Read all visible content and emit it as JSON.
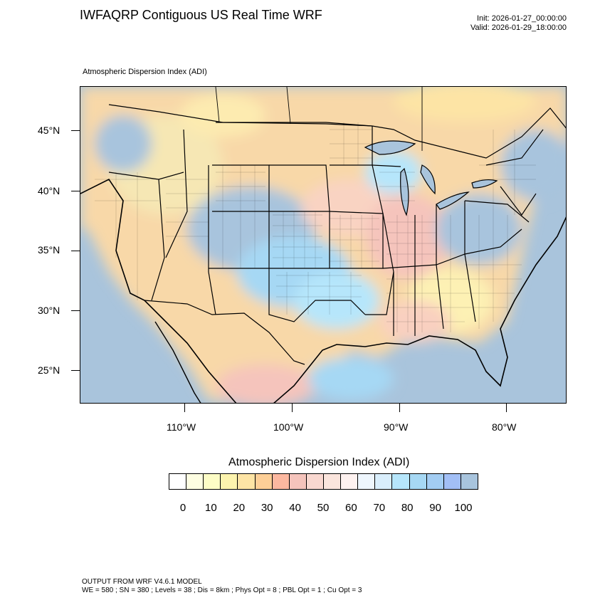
{
  "header": {
    "title": "IWFAQRP Contiguous US Real Time WRF",
    "init_line": "Init: 2026-01-27_00:00:00",
    "valid_line": "Valid: 2026-01-29_18:00:00"
  },
  "map": {
    "subtitle": "Atmospheric Dispersion Index   (ADI)",
    "lat_labels": [
      "45°N",
      "40°N",
      "35°N",
      "30°N",
      "25°N"
    ],
    "lon_labels": [
      "110°W",
      "100°W",
      "90°W",
      "80°W"
    ]
  },
  "colorbar": {
    "title": "Atmospheric Dispersion Index  (ADI)",
    "labels": [
      "0",
      "10",
      "20",
      "30",
      "40",
      "50",
      "60",
      "70",
      "80",
      "90",
      "100"
    ],
    "colors": [
      "#ffffff",
      "#fefee2",
      "#fdfdc6",
      "#fdf4ae",
      "#fde4a5",
      "#fdcf97",
      "#fcb8a0",
      "#f5c4bc",
      "#f9d8d0",
      "#fbe5dd",
      "#fef2f0",
      "#eef6fd",
      "#d9eefc",
      "#b6e6fb",
      "#a6d8f4",
      "#a3cdf3",
      "#a2bff6",
      "#a8c4dd"
    ]
  },
  "footer": {
    "line1": "OUTPUT FROM WRF V4.6.1 MODEL",
    "line2": "WE = 580 ; SN = 380 ; Levels = 38 ; Dis = 8km ; Phys Opt = 8 ; PBL Opt = 1 ; Cu Opt = 3"
  }
}
